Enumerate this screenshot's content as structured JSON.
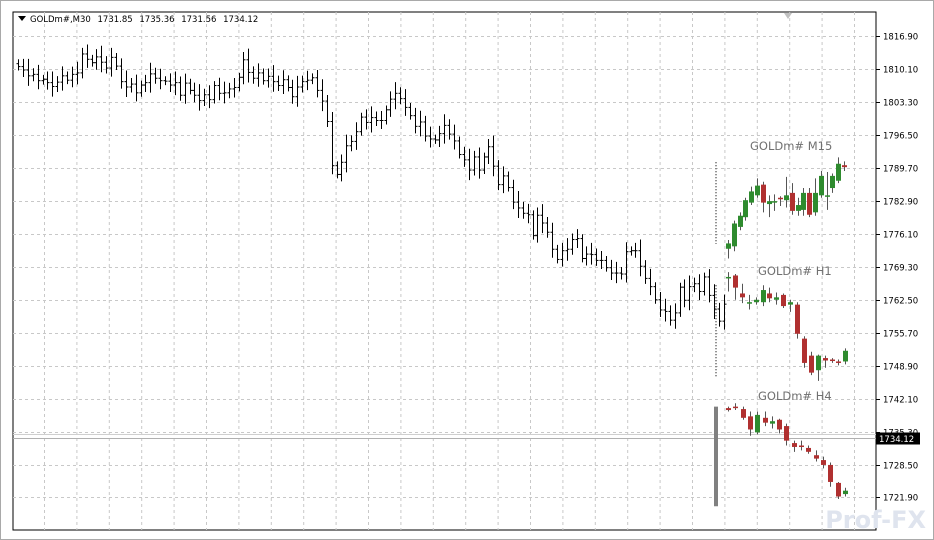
{
  "header": {
    "symbol": "GOLDm#,M30",
    "open": "1731.85",
    "high": "1735.36",
    "low": "1731.56",
    "close": "1734.12"
  },
  "watermark": "Prof-FX",
  "colors": {
    "grid": "#c8c8c8",
    "bar": "#000000",
    "bull": "#2e8b2e",
    "bear": "#b03030",
    "price_tag_bg": "#000000",
    "price_tag_fg": "#ffffff",
    "tf_label": "#707070"
  },
  "chart_data": {
    "type": "ohlc-bar",
    "symbol": "GOLDm#",
    "timeframe": "M30",
    "y_ticks": [
      "1816.90",
      "1810.10",
      "1803.30",
      "1796.50",
      "1789.70",
      "1782.90",
      "1776.10",
      "1769.30",
      "1762.50",
      "1755.70",
      "1748.90",
      "1742.10",
      "1735.30",
      "1728.50",
      "1721.90"
    ],
    "ylim": [
      1716.5,
      1820.0
    ],
    "current_price": "1734.12",
    "grid": true,
    "main_closes": [
      1810.5,
      1809.8,
      1808.6,
      1808.9,
      1807.6,
      1807.9,
      1807.2,
      1806.4,
      1807.3,
      1808.6,
      1807.7,
      1808.9,
      1809.2,
      1813.1,
      1812.0,
      1811.3,
      1812.5,
      1811.4,
      1810.2,
      1812.4,
      1810.6,
      1807.4,
      1806.3,
      1806.9,
      1805.1,
      1806.7,
      1807.2,
      1809.0,
      1808.1,
      1807.6,
      1807.5,
      1806.7,
      1807.2,
      1804.6,
      1807.1,
      1805.6,
      1804.6,
      1803.5,
      1804.7,
      1803.7,
      1806.6,
      1805.0,
      1805.1,
      1805.9,
      1806.2,
      1808.3,
      1811.9,
      1809.3,
      1808.1,
      1809.2,
      1807.6,
      1808.5,
      1807.4,
      1806.6,
      1807.8,
      1806.2,
      1804.3,
      1806.3,
      1807.4,
      1807.7,
      1808.2,
      1805.6,
      1803.4,
      1799.2,
      1790.1,
      1788.3,
      1790.8,
      1794.2,
      1795.1,
      1797.1,
      1800.1,
      1799.0,
      1800.0,
      1799.4,
      1799.4,
      1801.6,
      1803.8,
      1805.0,
      1803.9,
      1802.1,
      1800.4,
      1798.2,
      1799.1,
      1796.2,
      1795.6,
      1795.4,
      1796.7,
      1798.4,
      1796.6,
      1795.2,
      1792.4,
      1791.3,
      1789.2,
      1791.9,
      1789.2,
      1791.9,
      1794.0,
      1790.0,
      1786.2,
      1788.0,
      1785.6,
      1782.6,
      1781.4,
      1780.3,
      1780.0,
      1775.7,
      1779.9,
      1778.3,
      1776.4,
      1772.9,
      1770.8,
      1772.6,
      1772.9,
      1774.9,
      1775.1,
      1771.0,
      1771.9,
      1771.8,
      1770.6,
      1770.6,
      1769.1,
      1768.0,
      1768.0,
      1767.8,
      1772.4,
      1772.6,
      1772.6,
      1769.4,
      1766.9,
      1765.2,
      1762.5,
      1760.4,
      1760.1,
      1758.3,
      1759.8,
      1765.1,
      1762.4,
      1765.2,
      1765.8,
      1764.2,
      1767.2,
      1763.4,
      1760.6,
      1758.1,
      1761.6
    ],
    "panels": [
      {
        "label": "GOLDm# M15",
        "type": "candlestick",
        "candles": [
          {
            "o": 1773.0,
            "h": 1774.8,
            "l": 1771.0,
            "c": 1774.1
          },
          {
            "o": 1773.5,
            "h": 1778.8,
            "l": 1772.5,
            "c": 1778.2
          },
          {
            "o": 1777.5,
            "h": 1780.5,
            "l": 1776.8,
            "c": 1779.8
          },
          {
            "o": 1779.5,
            "h": 1783.5,
            "l": 1778.8,
            "c": 1783.0
          },
          {
            "o": 1782.5,
            "h": 1785.8,
            "l": 1782.0,
            "c": 1784.8
          },
          {
            "o": 1784.0,
            "h": 1787.5,
            "l": 1783.5,
            "c": 1786.0
          },
          {
            "o": 1786.2,
            "h": 1786.8,
            "l": 1780.5,
            "c": 1782.5
          },
          {
            "o": 1782.2,
            "h": 1784.0,
            "l": 1779.5,
            "c": 1782.8
          },
          {
            "o": 1782.5,
            "h": 1784.2,
            "l": 1780.8,
            "c": 1782.8
          },
          {
            "o": 1783.5,
            "h": 1783.8,
            "l": 1781.8,
            "c": 1783.2
          },
          {
            "o": 1783.0,
            "h": 1787.8,
            "l": 1781.5,
            "c": 1784.0
          },
          {
            "o": 1784.5,
            "h": 1786.5,
            "l": 1780.0,
            "c": 1780.8
          },
          {
            "o": 1780.8,
            "h": 1783.5,
            "l": 1779.8,
            "c": 1782.0
          },
          {
            "o": 1781.0,
            "h": 1785.5,
            "l": 1779.8,
            "c": 1784.5
          },
          {
            "o": 1784.5,
            "h": 1785.5,
            "l": 1779.5,
            "c": 1780.0
          },
          {
            "o": 1780.5,
            "h": 1787.5,
            "l": 1779.8,
            "c": 1784.5
          },
          {
            "o": 1784.0,
            "h": 1789.0,
            "l": 1783.5,
            "c": 1788.0
          },
          {
            "o": 1784.0,
            "h": 1788.8,
            "l": 1781.0,
            "c": 1784.0
          },
          {
            "o": 1785.5,
            "h": 1788.5,
            "l": 1784.5,
            "c": 1788.0
          },
          {
            "o": 1787.0,
            "h": 1791.8,
            "l": 1786.5,
            "c": 1790.5
          },
          {
            "o": 1790.2,
            "h": 1791.0,
            "l": 1789.0,
            "c": 1789.8
          }
        ]
      },
      {
        "label": "GOLDm# H1",
        "type": "candlestick",
        "candles": [
          {
            "o": 1767.0,
            "h": 1768.2,
            "l": 1764.2,
            "c": 1767.2
          },
          {
            "o": 1767.5,
            "h": 1767.8,
            "l": 1762.5,
            "c": 1765.0
          },
          {
            "o": 1763.8,
            "h": 1765.8,
            "l": 1761.8,
            "c": 1763.0
          },
          {
            "o": 1762.0,
            "h": 1763.5,
            "l": 1760.5,
            "c": 1762.0
          },
          {
            "o": 1762.0,
            "h": 1763.0,
            "l": 1761.5,
            "c": 1762.5
          },
          {
            "o": 1762.0,
            "h": 1765.5,
            "l": 1761.2,
            "c": 1764.5
          },
          {
            "o": 1763.8,
            "h": 1765.0,
            "l": 1762.0,
            "c": 1762.8
          },
          {
            "o": 1762.5,
            "h": 1764.0,
            "l": 1761.5,
            "c": 1763.0
          },
          {
            "o": 1763.5,
            "h": 1763.8,
            "l": 1760.8,
            "c": 1761.2
          },
          {
            "o": 1761.5,
            "h": 1762.5,
            "l": 1760.0,
            "c": 1762.0
          },
          {
            "o": 1761.5,
            "h": 1762.0,
            "l": 1754.5,
            "c": 1755.5
          },
          {
            "o": 1754.5,
            "h": 1755.0,
            "l": 1748.5,
            "c": 1749.5
          },
          {
            "o": 1751.0,
            "h": 1751.8,
            "l": 1747.0,
            "c": 1747.5
          },
          {
            "o": 1748.0,
            "h": 1751.2,
            "l": 1745.8,
            "c": 1751.0
          },
          {
            "o": 1750.5,
            "h": 1751.0,
            "l": 1748.5,
            "c": 1750.0
          },
          {
            "o": 1750.2,
            "h": 1750.5,
            "l": 1749.5,
            "c": 1750.0
          },
          {
            "o": 1749.8,
            "h": 1750.2,
            "l": 1749.0,
            "c": 1749.5
          },
          {
            "o": 1749.8,
            "h": 1752.5,
            "l": 1749.2,
            "c": 1752.0
          }
        ]
      },
      {
        "label": "GOLDm# H4",
        "type": "candlestick",
        "candles": [
          {
            "o": 1740.2,
            "h": 1740.5,
            "l": 1739.5,
            "c": 1739.8
          },
          {
            "o": 1740.5,
            "h": 1741.2,
            "l": 1739.8,
            "c": 1740.2
          },
          {
            "o": 1740.0,
            "h": 1740.5,
            "l": 1737.8,
            "c": 1738.2
          },
          {
            "o": 1738.5,
            "h": 1739.5,
            "l": 1734.5,
            "c": 1735.8
          },
          {
            "o": 1735.2,
            "h": 1739.5,
            "l": 1734.8,
            "c": 1738.8
          },
          {
            "o": 1738.2,
            "h": 1739.5,
            "l": 1736.5,
            "c": 1737.2
          },
          {
            "o": 1737.0,
            "h": 1738.5,
            "l": 1736.0,
            "c": 1737.5
          },
          {
            "o": 1737.8,
            "h": 1738.0,
            "l": 1735.0,
            "c": 1735.8
          },
          {
            "o": 1736.5,
            "h": 1737.0,
            "l": 1732.5,
            "c": 1733.5
          },
          {
            "o": 1733.0,
            "h": 1733.5,
            "l": 1731.2,
            "c": 1732.2
          },
          {
            "o": 1732.5,
            "h": 1733.5,
            "l": 1731.5,
            "c": 1732.2
          },
          {
            "o": 1732.0,
            "h": 1732.5,
            "l": 1730.8,
            "c": 1731.2
          },
          {
            "o": 1730.5,
            "h": 1731.5,
            "l": 1729.2,
            "c": 1729.8
          },
          {
            "o": 1729.5,
            "h": 1730.2,
            "l": 1727.8,
            "c": 1728.5
          },
          {
            "o": 1728.5,
            "h": 1729.0,
            "l": 1724.0,
            "c": 1725.0
          },
          {
            "o": 1724.8,
            "h": 1725.0,
            "l": 1721.5,
            "c": 1722.0
          },
          {
            "o": 1722.5,
            "h": 1723.8,
            "l": 1722.0,
            "c": 1723.2
          }
        ]
      }
    ]
  }
}
